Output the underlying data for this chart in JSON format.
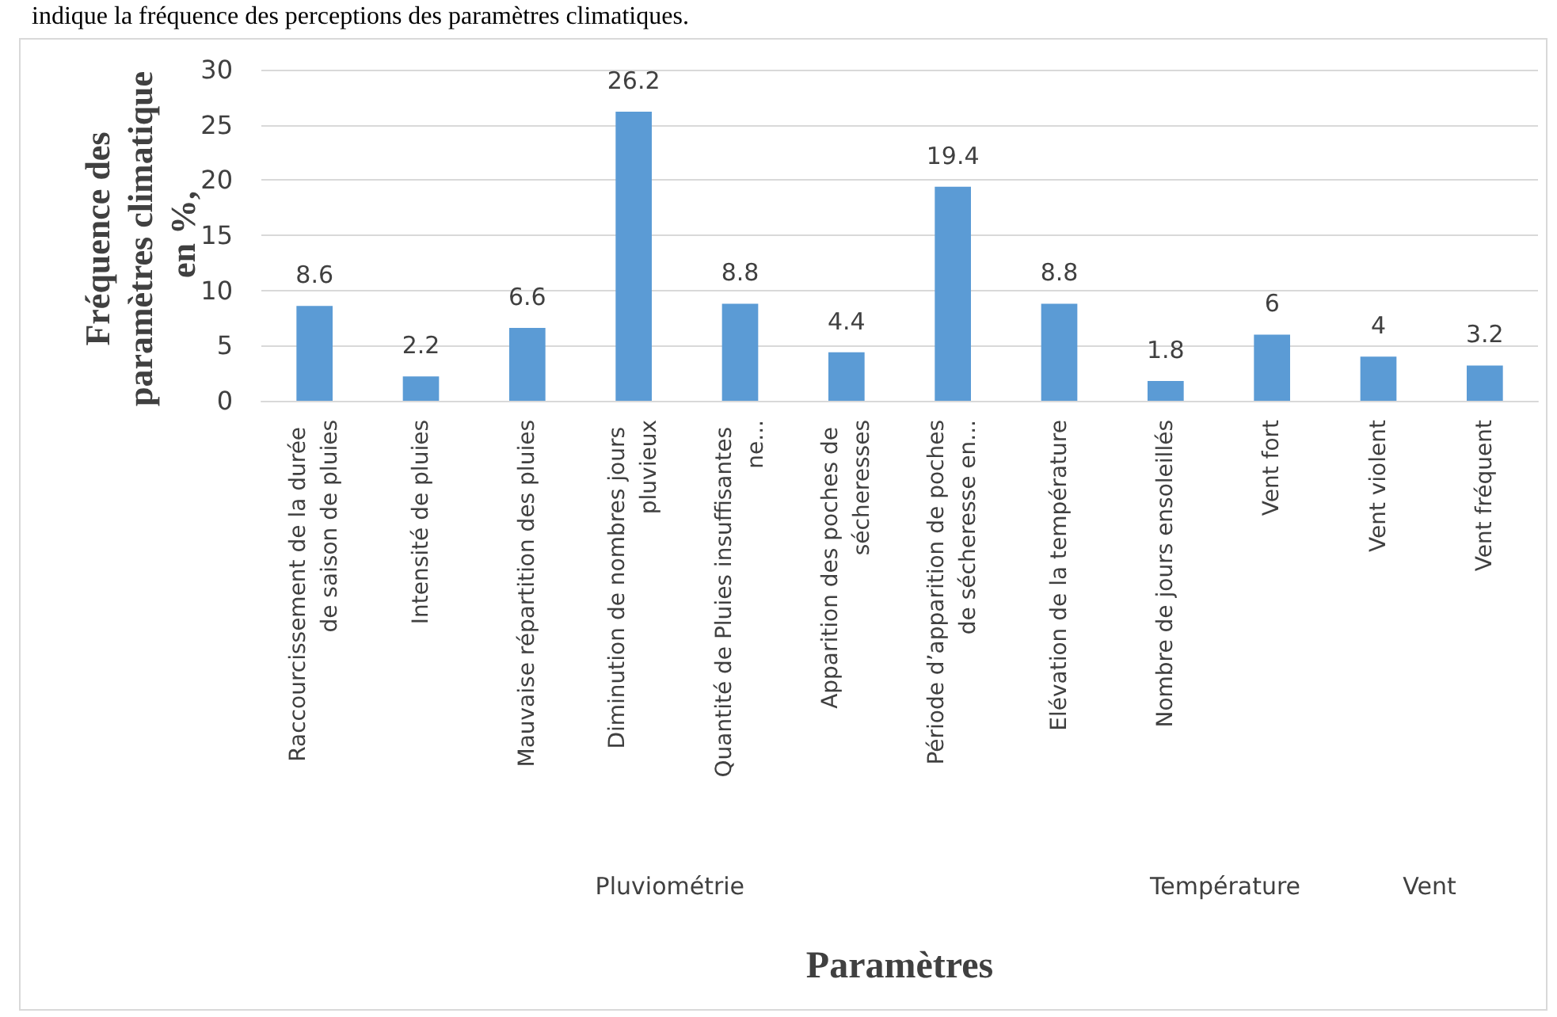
{
  "chart_data": {
    "type": "bar",
    "ylabel": "Fréquence des paramètres climatique en %,",
    "xlabel": "Paramètres",
    "categories": [
      "Raccourcissement de la durée de saison de pluies",
      "Intensité de pluies",
      "Mauvaise répartition des pluies",
      "Diminution de nombres jours pluvieux",
      "Quantité de Pluies insuffisantes ne...",
      "Apparition des poches de sécheresses",
      "Période d’apparition de poches de sécheresse en...",
      "Elévation de la température",
      "Nombre de jours ensoleillés",
      "Vent fort",
      "Vent violent",
      "Vent fréquent"
    ],
    "values": [
      8.6,
      2.2,
      6.6,
      26.2,
      8.8,
      4.4,
      19.4,
      8.8,
      1.8,
      6,
      4,
      3.2
    ],
    "color": "#5b9bd5",
    "ylim": [
      0,
      30
    ],
    "yticks": [
      0,
      5,
      10,
      15,
      20,
      25,
      30
    ],
    "grid": "y",
    "data_labels": true,
    "annotations": [
      "indique la fréquence des perceptions des paramètres climatiques.",
      "Pluviométrie",
      "Température",
      "Vent"
    ]
  }
}
